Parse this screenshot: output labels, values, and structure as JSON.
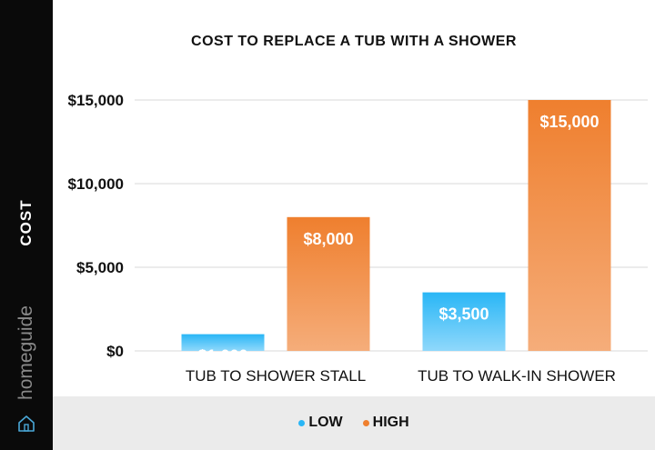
{
  "brand": {
    "name": "homeguide",
    "icon": "house-icon"
  },
  "chart_data": {
    "type": "bar",
    "title": "COST TO REPLACE A TUB WITH A SHOWER",
    "ylabel": "COST",
    "xlabel": "",
    "categories": [
      "TUB TO SHOWER STALL",
      "TUB TO WALK-IN SHOWER"
    ],
    "series": [
      {
        "name": "LOW",
        "values": [
          1000,
          3500
        ],
        "labels": [
          "$1,000",
          "$3,500"
        ],
        "color": "#29b6f6"
      },
      {
        "name": "HIGH",
        "values": [
          8000,
          15000
        ],
        "labels": [
          "$8,000",
          "$15,000"
        ],
        "color": "#ef7f2e"
      }
    ],
    "yticks": [
      {
        "value": 0,
        "label": "$0"
      },
      {
        "value": 5000,
        "label": "$5,000"
      },
      {
        "value": 10000,
        "label": "$10,000"
      },
      {
        "value": 15000,
        "label": "$15,000"
      }
    ],
    "ylim": [
      0,
      15000
    ],
    "grid": true,
    "legend_position": "bottom"
  }
}
